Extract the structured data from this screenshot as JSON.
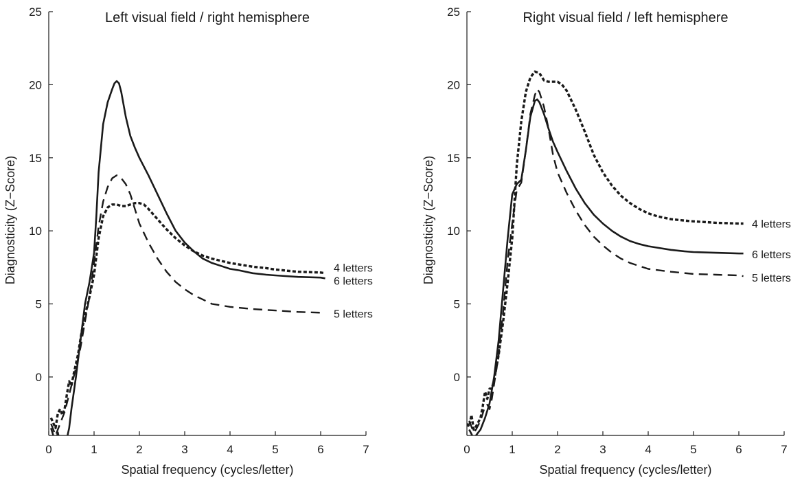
{
  "chart_data": [
    {
      "type": "line",
      "title": "Left visual field / right hemisphere",
      "xlabel": "Spatial frequency (cycles/letter)",
      "ylabel": "Diagnosticity (Z−Score)",
      "xlim": [
        0,
        7
      ],
      "ylim": [
        -4,
        25
      ],
      "xticks": [
        "0",
        "1",
        "2",
        "3",
        "4",
        "5",
        "6",
        "7"
      ],
      "yticks": [
        "0",
        "5",
        "10",
        "15",
        "20",
        "25"
      ],
      "grid": false,
      "series": [
        {
          "name": "4 letters",
          "style": "dotted",
          "x": [
            0.05,
            0.15,
            0.2,
            0.25,
            0.3,
            0.35,
            0.4,
            0.45,
            0.5,
            0.55,
            0.6,
            0.65,
            0.7,
            0.75,
            0.8,
            0.9,
            1.0,
            1.1,
            1.2,
            1.3,
            1.4,
            1.5,
            1.6,
            1.7,
            1.8,
            1.9,
            2.0,
            2.1,
            2.2,
            2.4,
            2.6,
            2.8,
            3.0,
            3.2,
            3.4,
            3.6,
            3.8,
            4.0,
            4.2,
            4.5,
            4.8,
            5.0,
            5.5,
            6.0,
            6.1
          ],
          "y": [
            -2.8,
            -3.5,
            -2.5,
            -2.2,
            -2.6,
            -2.2,
            -1.2,
            -0.3,
            -0.6,
            0.2,
            0.9,
            1.6,
            2.6,
            3.5,
            4.2,
            5.5,
            7.0,
            9.5,
            11.0,
            11.6,
            11.8,
            11.8,
            11.7,
            11.7,
            11.8,
            11.9,
            11.9,
            11.8,
            11.5,
            10.8,
            10.1,
            9.5,
            9.0,
            8.6,
            8.3,
            8.1,
            7.95,
            7.8,
            7.7,
            7.55,
            7.45,
            7.35,
            7.2,
            7.15,
            7.1
          ]
        },
        {
          "name": "6 letters",
          "style": "solid",
          "x": [
            0.05,
            0.15,
            0.2,
            0.25,
            0.3,
            0.35,
            0.4,
            0.45,
            0.5,
            0.6,
            0.7,
            0.8,
            0.9,
            1.0,
            1.05,
            1.1,
            1.2,
            1.3,
            1.4,
            1.45,
            1.5,
            1.55,
            1.6,
            1.7,
            1.8,
            1.9,
            2.0,
            2.2,
            2.4,
            2.6,
            2.8,
            3.0,
            3.2,
            3.4,
            3.6,
            3.8,
            4.0,
            4.2,
            4.5,
            4.8,
            5.0,
            5.5,
            6.0,
            6.1
          ],
          "y": [
            -3.5,
            -4.5,
            -3.8,
            -4.5,
            -4.8,
            -4.5,
            -4.2,
            -3.5,
            -2.2,
            0.0,
            2.5,
            5.0,
            6.5,
            8.5,
            11.0,
            14.0,
            17.3,
            18.8,
            19.7,
            20.1,
            20.25,
            20.1,
            19.5,
            17.8,
            16.5,
            15.7,
            15.0,
            13.8,
            12.5,
            11.2,
            10.0,
            9.2,
            8.6,
            8.1,
            7.8,
            7.6,
            7.4,
            7.3,
            7.1,
            7.0,
            6.95,
            6.85,
            6.8,
            6.75
          ]
        },
        {
          "name": "5 letters",
          "style": "dashed",
          "x": [
            0.05,
            0.15,
            0.25,
            0.3,
            0.35,
            0.4,
            0.45,
            0.5,
            0.6,
            0.7,
            0.8,
            0.9,
            1.0,
            1.1,
            1.2,
            1.3,
            1.4,
            1.5,
            1.6,
            1.7,
            1.8,
            1.9,
            2.0,
            2.2,
            2.4,
            2.6,
            2.8,
            3.0,
            3.2,
            3.4,
            3.6,
            3.8,
            4.0,
            4.5,
            5.0,
            5.5,
            6.0,
            6.1
          ],
          "y": [
            -3.2,
            -4.0,
            -3.2,
            -2.8,
            -2.4,
            -1.8,
            -1.2,
            -0.6,
            0.6,
            2.0,
            3.8,
            5.5,
            7.8,
            10.3,
            12.0,
            13.0,
            13.6,
            13.8,
            13.6,
            13.2,
            12.5,
            11.5,
            10.5,
            9.2,
            8.1,
            7.2,
            6.5,
            6.0,
            5.6,
            5.3,
            5.0,
            4.9,
            4.8,
            4.65,
            4.55,
            4.45,
            4.4,
            4.38
          ]
        }
      ],
      "end_labels": [
        {
          "text": "4 letters",
          "y": 7.5
        },
        {
          "text": "6 letters",
          "y": 6.6
        },
        {
          "text": "5 letters",
          "y": 4.35
        }
      ]
    },
    {
      "type": "line",
      "title": "Right visual field / left hemisphere",
      "xlabel": "Spatial frequency (cycles/letter)",
      "ylabel": "Diagnosticity (Z−Score)",
      "xlim": [
        0,
        7
      ],
      "ylim": [
        -4,
        25
      ],
      "xticks": [
        "0",
        "1",
        "2",
        "3",
        "4",
        "5",
        "6",
        "7"
      ],
      "yticks": [
        "0",
        "5",
        "10",
        "15",
        "20",
        "25"
      ],
      "grid": false,
      "series": [
        {
          "name": "4 letters",
          "style": "dotted",
          "x": [
            0.0,
            0.05,
            0.1,
            0.15,
            0.2,
            0.3,
            0.35,
            0.4,
            0.45,
            0.5,
            0.55,
            0.6,
            0.7,
            0.8,
            0.9,
            1.0,
            1.05,
            1.1,
            1.2,
            1.3,
            1.4,
            1.5,
            1.6,
            1.7,
            1.8,
            1.9,
            2.0,
            2.1,
            2.2,
            2.4,
            2.6,
            2.8,
            3.0,
            3.2,
            3.4,
            3.6,
            3.8,
            4.0,
            4.2,
            4.5,
            4.8,
            5.0,
            5.5,
            6.0,
            6.1
          ],
          "y": [
            -3.2,
            -3.4,
            -2.6,
            -3.6,
            -3.4,
            -2.8,
            -2.0,
            -1.0,
            -1.5,
            -0.8,
            -0.8,
            -0.2,
            1.5,
            3.8,
            6.5,
            9.5,
            12.0,
            14.5,
            17.5,
            19.5,
            20.5,
            20.9,
            20.8,
            20.3,
            20.2,
            20.2,
            20.2,
            20.0,
            19.6,
            18.3,
            16.8,
            15.2,
            14.0,
            13.1,
            12.4,
            11.9,
            11.5,
            11.2,
            11.0,
            10.8,
            10.7,
            10.65,
            10.55,
            10.5,
            10.5
          ]
        },
        {
          "name": "6 letters",
          "style": "solid",
          "x": [
            0.05,
            0.1,
            0.15,
            0.2,
            0.25,
            0.3,
            0.4,
            0.5,
            0.6,
            0.7,
            0.8,
            0.9,
            1.0,
            1.1,
            1.2,
            1.3,
            1.4,
            1.5,
            1.55,
            1.6,
            1.7,
            1.8,
            1.9,
            2.0,
            2.2,
            2.4,
            2.6,
            2.8,
            3.0,
            3.2,
            3.4,
            3.6,
            3.8,
            4.0,
            4.2,
            4.5,
            4.8,
            5.0,
            5.5,
            6.0,
            6.1
          ],
          "y": [
            -3.6,
            -3.9,
            -4.2,
            -4.0,
            -3.8,
            -3.6,
            -2.8,
            -1.8,
            0.0,
            2.5,
            6.0,
            9.5,
            12.5,
            13.2,
            13.5,
            15.5,
            17.8,
            18.9,
            19.0,
            18.8,
            18.0,
            17.0,
            16.1,
            15.4,
            14.1,
            12.9,
            11.9,
            11.1,
            10.5,
            10.0,
            9.6,
            9.3,
            9.1,
            8.95,
            8.85,
            8.7,
            8.6,
            8.55,
            8.5,
            8.45,
            8.45
          ]
        },
        {
          "name": "5 letters",
          "style": "dashed",
          "x": [
            0.05,
            0.1,
            0.15,
            0.2,
            0.3,
            0.4,
            0.45,
            0.5,
            0.55,
            0.6,
            0.7,
            0.8,
            0.9,
            1.0,
            1.1,
            1.2,
            1.3,
            1.4,
            1.5,
            1.55,
            1.6,
            1.7,
            1.8,
            1.9,
            2.0,
            2.2,
            2.4,
            2.6,
            2.8,
            3.0,
            3.2,
            3.4,
            3.6,
            3.8,
            4.0,
            4.5,
            5.0,
            5.5,
            6.0,
            6.1
          ],
          "y": [
            -3.0,
            -3.4,
            -3.8,
            -3.6,
            -3.0,
            -2.0,
            -1.9,
            -2.2,
            -1.5,
            -0.5,
            1.5,
            4.5,
            8.0,
            10.5,
            12.8,
            13.3,
            15.5,
            18.0,
            19.3,
            19.7,
            19.5,
            18.5,
            17.0,
            15.2,
            14.0,
            12.6,
            11.4,
            10.4,
            9.6,
            9.0,
            8.5,
            8.1,
            7.8,
            7.6,
            7.4,
            7.2,
            7.05,
            7.0,
            6.95,
            6.9
          ]
        }
      ],
      "end_labels": [
        {
          "text": "4 letters",
          "y": 10.5
        },
        {
          "text": "6 letters",
          "y": 8.4
        },
        {
          "text": "5 letters",
          "y": 6.8
        }
      ]
    }
  ]
}
